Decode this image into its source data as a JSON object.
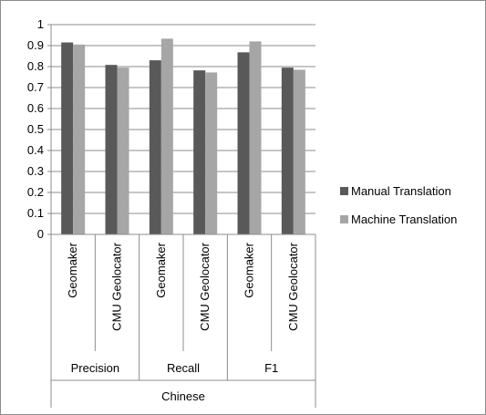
{
  "chart_data": {
    "type": "bar",
    "categories": [
      {
        "metric": "Precision",
        "system": "Geomaker"
      },
      {
        "metric": "Precision",
        "system": "CMU Geolocator"
      },
      {
        "metric": "Recall",
        "system": "Geomaker"
      },
      {
        "metric": "Recall",
        "system": "CMU Geolocator"
      },
      {
        "metric": "F1",
        "system": "Geomaker"
      },
      {
        "metric": "F1",
        "system": "CMU Geolocator"
      }
    ],
    "group_labels": [
      "Precision",
      "Recall",
      "F1"
    ],
    "outer_label": "Chinese",
    "series": [
      {
        "name": "Manual Translation",
        "color": "#595959",
        "values": [
          0.915,
          0.808,
          0.83,
          0.782,
          0.868,
          0.795
        ]
      },
      {
        "name": "Machine Translation",
        "color": "#a6a6a6",
        "values": [
          0.905,
          0.795,
          0.933,
          0.772,
          0.92,
          0.785
        ]
      }
    ],
    "ylim": [
      0,
      1
    ],
    "yticks": [
      "0",
      "0.1",
      "0.2",
      "0.3",
      "0.4",
      "0.5",
      "0.6",
      "0.7",
      "0.8",
      "0.9",
      "1"
    ],
    "grid": true,
    "legend_position": "right",
    "title": "",
    "xlabel": "",
    "ylabel": ""
  }
}
